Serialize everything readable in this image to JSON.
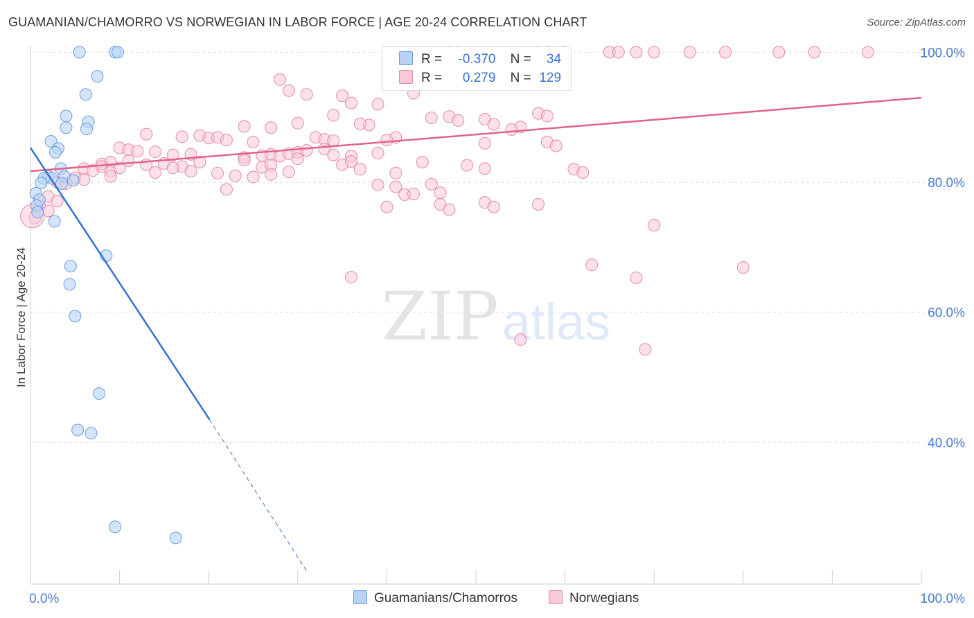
{
  "header": {
    "title": "GUAMANIAN/CHAMORRO VS NORWEGIAN IN LABOR FORCE | AGE 20-24 CORRELATION CHART",
    "source": "Source: ZipAtlas.com"
  },
  "watermark": {
    "zip": "ZIP",
    "atlas": "atlas"
  },
  "legend": {
    "rows": [
      {
        "r_label": "R =",
        "r_value": "-0.370",
        "n_label": "N =",
        "n_value": "34"
      },
      {
        "r_label": "R =",
        "r_value": "0.279",
        "n_label": "N =",
        "n_value": "129"
      }
    ]
  },
  "bottom_legend": {
    "series1": "Guamanians/Chamorros",
    "series2": "Norwegians"
  },
  "colors": {
    "blue_fill": "#b9d3f5",
    "blue_stroke": "#6c9de0",
    "blue_line": "#2f72d6",
    "pink_fill": "#f9c9d8",
    "pink_stroke": "#e48aa8",
    "pink_line": "#e0628f",
    "grid": "#dddddd",
    "axis_text": "#4a7bd0"
  },
  "chart_data": {
    "type": "scatter",
    "title": "GUAMANIAN/CHAMORRO VS NORWEGIAN IN LABOR FORCE | AGE 20-24 CORRELATION CHART",
    "xlabel": "",
    "ylabel": "In Labor Force | Age 20-24",
    "xlim": [
      0,
      100
    ],
    "ylim": [
      18.2,
      101
    ],
    "x_tick_labels": [
      {
        "value": 0,
        "label": "0.0%"
      },
      {
        "value": 100,
        "label": "100.0%"
      }
    ],
    "y_tick_labels": [
      {
        "value": 100,
        "label": "100.0%"
      },
      {
        "value": 80,
        "label": "80.0%"
      },
      {
        "value": 60,
        "label": "60.0%"
      },
      {
        "value": 40,
        "label": "40.0%"
      }
    ],
    "x_minor_ticks": [
      0,
      10,
      20,
      30,
      40,
      50,
      60,
      70,
      80,
      90,
      100
    ],
    "series": [
      {
        "name": "Guamanians/Chamorros",
        "r": -0.37,
        "n": 34,
        "trend": {
          "x1": 0,
          "y1": 85.3,
          "x2": 20.1,
          "y2": 43.5,
          "dash_to_x": 31,
          "dash_to_y": 20.2
        },
        "points": [
          [
            5.5,
            100
          ],
          [
            9.5,
            100
          ],
          [
            9.8,
            100
          ],
          [
            7.5,
            96.3
          ],
          [
            6.2,
            93.5
          ],
          [
            4.0,
            90.2
          ],
          [
            6.5,
            89.3
          ],
          [
            4.0,
            88.4
          ],
          [
            6.3,
            88.2
          ],
          [
            2.3,
            86.3
          ],
          [
            3.1,
            85.2
          ],
          [
            2.8,
            84.6
          ],
          [
            3.4,
            82.1
          ],
          [
            3.8,
            80.9
          ],
          [
            2.0,
            80.9
          ],
          [
            2.4,
            80.6
          ],
          [
            4.8,
            80.3
          ],
          [
            1.5,
            80.6
          ],
          [
            1.2,
            79.9
          ],
          [
            3.5,
            79.8
          ],
          [
            0.6,
            78.3
          ],
          [
            1.0,
            77.3
          ],
          [
            0.7,
            76.4
          ],
          [
            0.8,
            75.4
          ],
          [
            2.7,
            74.0
          ],
          [
            8.5,
            68.7
          ],
          [
            4.5,
            67.1
          ],
          [
            4.4,
            64.3
          ],
          [
            5.0,
            59.4
          ],
          [
            7.7,
            47.5
          ],
          [
            5.3,
            41.9
          ],
          [
            6.8,
            41.4
          ],
          [
            9.5,
            27.0
          ],
          [
            16.3,
            25.3
          ]
        ]
      },
      {
        "name": "Norwegians",
        "r": 0.279,
        "n": 129,
        "trend": {
          "x1": 0,
          "y1": 81.7,
          "x2": 100,
          "y2": 93.0
        },
        "points": [
          [
            47,
            100
          ],
          [
            48,
            100
          ],
          [
            57,
            100
          ],
          [
            58,
            100
          ],
          [
            60,
            100
          ],
          [
            65,
            100
          ],
          [
            66,
            100
          ],
          [
            68,
            100
          ],
          [
            70,
            100
          ],
          [
            74,
            100
          ],
          [
            78,
            100
          ],
          [
            84,
            100
          ],
          [
            88,
            100
          ],
          [
            94,
            100
          ],
          [
            28,
            95.8
          ],
          [
            29,
            94.1
          ],
          [
            31,
            93.5
          ],
          [
            35,
            93.3
          ],
          [
            36,
            92.2
          ],
          [
            39,
            92.0
          ],
          [
            43,
            93.7
          ],
          [
            34,
            90.3
          ],
          [
            47,
            90.1
          ],
          [
            45,
            89.9
          ],
          [
            48,
            89.5
          ],
          [
            57,
            90.6
          ],
          [
            58,
            90.2
          ],
          [
            51,
            89.7
          ],
          [
            52,
            88.9
          ],
          [
            24,
            88.6
          ],
          [
            27,
            88.4
          ],
          [
            30,
            89.1
          ],
          [
            38,
            88.8
          ],
          [
            37,
            89.0
          ],
          [
            55,
            88.5
          ],
          [
            54,
            88.1
          ],
          [
            13,
            87.4
          ],
          [
            17,
            87.0
          ],
          [
            19,
            87.2
          ],
          [
            20,
            86.8
          ],
          [
            21,
            86.9
          ],
          [
            22,
            86.5
          ],
          [
            25,
            86.2
          ],
          [
            32,
            86.9
          ],
          [
            33,
            86.6
          ],
          [
            34,
            86.4
          ],
          [
            41,
            86.9
          ],
          [
            40,
            86.5
          ],
          [
            51,
            86.0
          ],
          [
            58,
            86.2
          ],
          [
            59,
            85.6
          ],
          [
            10,
            85.3
          ],
          [
            11,
            85.0
          ],
          [
            12,
            84.8
          ],
          [
            14,
            84.7
          ],
          [
            16,
            84.2
          ],
          [
            18,
            84.3
          ],
          [
            24,
            83.8
          ],
          [
            26,
            84.1
          ],
          [
            27,
            84.3
          ],
          [
            28,
            84.0
          ],
          [
            29,
            84.4
          ],
          [
            30,
            84.6
          ],
          [
            31,
            84.9
          ],
          [
            33,
            85.1
          ],
          [
            34,
            84.2
          ],
          [
            36,
            84.0
          ],
          [
            39,
            84.5
          ],
          [
            8,
            82.8
          ],
          [
            9,
            83.1
          ],
          [
            11,
            83.3
          ],
          [
            13,
            82.7
          ],
          [
            15,
            82.9
          ],
          [
            17,
            82.4
          ],
          [
            19,
            83.1
          ],
          [
            24,
            83.4
          ],
          [
            26,
            82.3
          ],
          [
            27,
            82.6
          ],
          [
            30,
            83.6
          ],
          [
            35,
            82.7
          ],
          [
            36,
            83.2
          ],
          [
            44,
            83.1
          ],
          [
            6,
            82.1
          ],
          [
            7,
            81.8
          ],
          [
            8,
            82.4
          ],
          [
            9,
            81.7
          ],
          [
            10,
            82.2
          ],
          [
            14,
            81.5
          ],
          [
            16,
            82.2
          ],
          [
            18,
            81.7
          ],
          [
            21,
            81.4
          ],
          [
            23,
            81.0
          ],
          [
            25,
            80.8
          ],
          [
            27,
            81.2
          ],
          [
            29,
            81.6
          ],
          [
            37,
            82.0
          ],
          [
            41,
            81.4
          ],
          [
            49,
            82.6
          ],
          [
            51,
            82.1
          ],
          [
            61,
            82.0
          ],
          [
            62,
            81.5
          ],
          [
            5,
            80.7
          ],
          [
            6,
            80.4
          ],
          [
            9,
            80.9
          ],
          [
            3,
            80.0
          ],
          [
            4,
            79.8
          ],
          [
            22,
            78.9
          ],
          [
            39,
            79.6
          ],
          [
            41,
            79.3
          ],
          [
            42,
            78.1
          ],
          [
            43,
            78.2
          ],
          [
            45,
            79.7
          ],
          [
            46,
            78.4
          ],
          [
            2,
            77.8
          ],
          [
            3,
            77.1
          ],
          [
            40,
            76.2
          ],
          [
            46,
            76.6
          ],
          [
            47,
            75.8
          ],
          [
            51,
            76.9
          ],
          [
            52,
            76.2
          ],
          [
            57,
            76.6
          ],
          [
            1,
            76.4
          ],
          [
            2,
            75.6
          ],
          [
            0.5,
            74.5
          ],
          [
            70,
            73.4
          ],
          [
            63,
            67.3
          ],
          [
            68,
            65.3
          ],
          [
            36,
            65.4
          ],
          [
            80,
            66.9
          ],
          [
            55,
            55.8
          ],
          [
            69,
            54.3
          ]
        ]
      }
    ]
  }
}
